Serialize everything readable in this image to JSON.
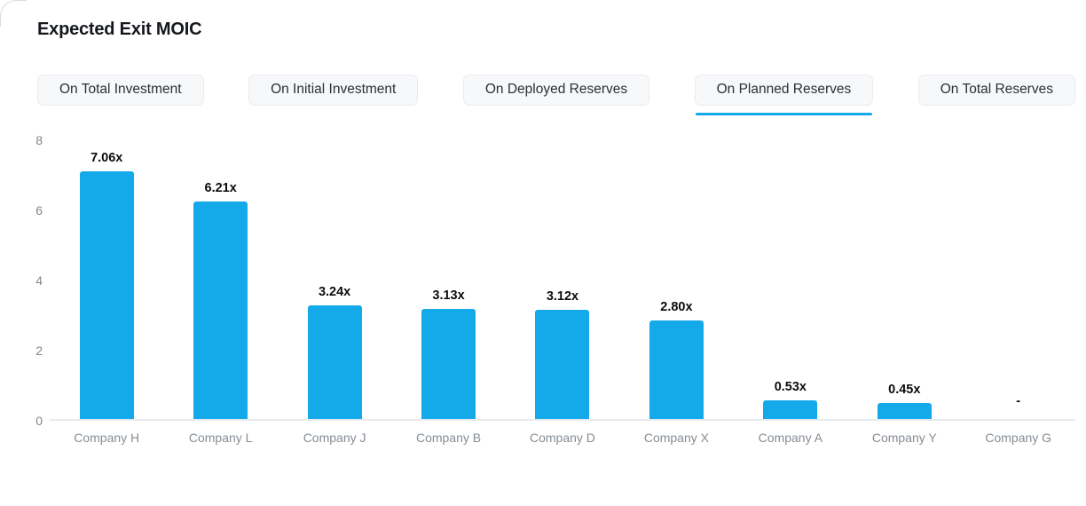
{
  "accent": "#14a9e8",
  "header": {
    "title": "Expected Exit MOIC"
  },
  "tabs": [
    {
      "label": "On Total Investment",
      "active": false
    },
    {
      "label": "On Initial Investment",
      "active": false
    },
    {
      "label": "On Deployed Reserves",
      "active": false
    },
    {
      "label": "On Planned Reserves",
      "active": true
    },
    {
      "label": "On Total Reserves",
      "active": false
    }
  ],
  "chart_data": {
    "type": "bar",
    "title": "Expected Exit MOIC",
    "selected_metric": "On Planned Reserves",
    "categories": [
      "Company H",
      "Company L",
      "Company J",
      "Company B",
      "Company D",
      "Company X",
      "Company A",
      "Company Y",
      "Company G"
    ],
    "values": [
      7.06,
      6.21,
      3.24,
      3.13,
      3.12,
      2.8,
      0.53,
      0.45,
      null
    ],
    "value_labels": [
      "7.06x",
      "6.21x",
      "3.24x",
      "3.13x",
      "3.12x",
      "2.80x",
      "0.53x",
      "0.45x",
      "-"
    ],
    "xlabel": "",
    "ylabel": "",
    "ylim": [
      0,
      8
    ],
    "yticks": [
      0,
      2,
      4,
      6,
      8
    ],
    "grid": false,
    "legend": false,
    "bar_color": "#14a9e8",
    "axis_line_color": "#e7eaee"
  }
}
